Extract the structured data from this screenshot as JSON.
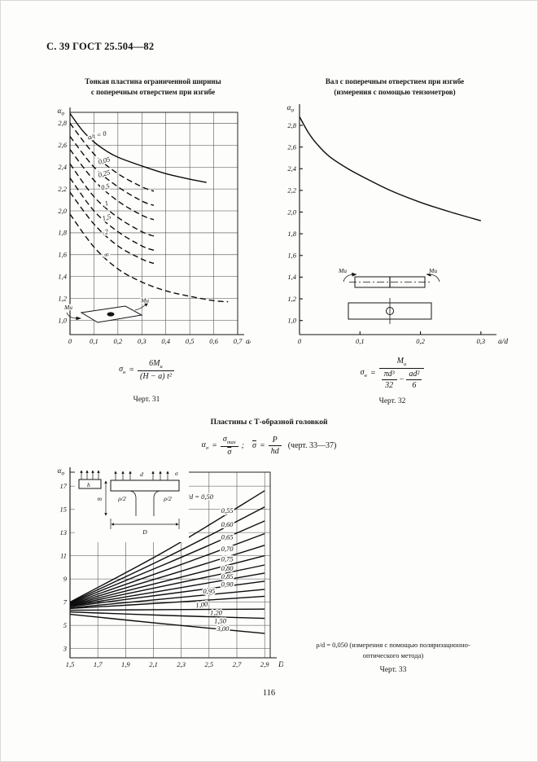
{
  "page": {
    "header": "С. 39 ГОСТ 25.504—82",
    "page_number": "116"
  },
  "colors": {
    "ink": "#151515",
    "paper": "#fdfdfc"
  },
  "section": {
    "title": "Пластины с Т-образной головкой"
  },
  "figures": {
    "fig31": {
      "title_lines": [
        "Тонкая пластина ограниченной ширины",
        "с поперечным отверстием при изгибе"
      ],
      "caption": "Черт. 31"
    },
    "fig32": {
      "title_lines": [
        "Вал с поперечным отверстием при изгибе",
        "(измерения с помощью тензометров)"
      ],
      "caption": "Черт. 32"
    },
    "fig33": {
      "note_lines": [
        "ρ/d = 0,050 (измерения с помощью поляризационно-",
        "оптического метода)"
      ],
      "caption": "Черт. 33"
    }
  },
  "formulas": {
    "f31": {
      "lhs": "σ",
      "lhs_sub": "н",
      "eq": "=",
      "num": "6M",
      "num_sub": "и",
      "den": "(H − a) t²"
    },
    "f32": {
      "lhs": "σ",
      "lhs_sub": "н",
      "eq": "=",
      "num": "M",
      "num_sub": "и",
      "d1n": "πd³",
      "d1d": "32",
      "minus": "−",
      "d2n": "ad²",
      "d2d": "6"
    },
    "f33": {
      "lhs": "α",
      "lhs_sub": "σ",
      "eq": "=",
      "n1": "σ",
      "n1_sub": "max",
      "d1": "σ",
      "semi": ";",
      "lhs2": "σ",
      "eq2": "=",
      "n2": "P",
      "d2": "hd",
      "tail": "(черт. 33—37)"
    }
  },
  "insets": {
    "fig31": {
      "m_left": "Mи",
      "m_right": "Mи"
    },
    "fig32": {
      "m_left": "Mи",
      "m_right": "Mи"
    },
    "fig33": {
      "h": "h",
      "d": "d",
      "sigma": "σ",
      "rho_left": "ρ/2",
      "rho_right": "ρ/2",
      "m": "m",
      "D": "D"
    }
  },
  "chart_data": [
    {
      "id": "fig31",
      "type": "line",
      "title": "Тонкая пластина ограниченной ширины с поперечным отверстием при изгибе",
      "xlabel": "a/H",
      "ylabel_base": "α",
      "ylabel_sub": "σ",
      "xlim": [
        0,
        0.7
      ],
      "ylim": [
        0.87,
        2.9
      ],
      "grid": true,
      "legend_position": "none",
      "x_ticks": {
        "values": [
          0,
          0.1,
          0.2,
          0.3,
          0.4,
          0.5,
          0.6,
          0.7
        ],
        "labels": [
          "0",
          "0,1",
          "0,2",
          "0,3",
          "0,4",
          "0,5",
          "0,6",
          "0,7"
        ]
      },
      "y_ticks": {
        "values": [
          1.0,
          1.2,
          1.4,
          1.6,
          1.8,
          2.0,
          2.2,
          2.4,
          2.6,
          2.8
        ],
        "labels": [
          "1,0",
          "1,2",
          "1,4",
          "1,6",
          "1,8",
          "2,0",
          "2,2",
          "2,4",
          "2,6",
          "2,8"
        ]
      },
      "series": [
        {
          "name": "a/t = 0",
          "style": "solid",
          "points": [
            [
              0,
              2.89
            ],
            [
              0.05,
              2.74
            ],
            [
              0.1,
              2.63
            ],
            [
              0.15,
              2.55
            ],
            [
              0.2,
              2.49
            ],
            [
              0.3,
              2.41
            ],
            [
              0.4,
              2.34
            ],
            [
              0.5,
              2.29
            ],
            [
              0.57,
              2.26
            ]
          ],
          "label": {
            "text": "a/t = 0",
            "x": 0.115,
            "y": 2.67,
            "rot": -13
          }
        },
        {
          "name": "0,05",
          "style": "dashed",
          "points": [
            [
              0,
              2.8
            ],
            [
              0.1,
              2.52
            ],
            [
              0.2,
              2.34
            ],
            [
              0.3,
              2.22
            ],
            [
              0.35,
              2.18
            ]
          ],
          "label": {
            "text": "0,05",
            "x": 0.145,
            "y": 2.44,
            "rot": -15
          }
        },
        {
          "name": "0,25",
          "style": "dashed",
          "points": [
            [
              0,
              2.68
            ],
            [
              0.1,
              2.4
            ],
            [
              0.2,
              2.22
            ],
            [
              0.3,
              2.09
            ],
            [
              0.35,
              2.05
            ]
          ],
          "label": {
            "text": "0,25",
            "x": 0.145,
            "y": 2.32,
            "rot": -15
          }
        },
        {
          "name": "0,5",
          "style": "dashed",
          "points": [
            [
              0,
              2.56
            ],
            [
              0.1,
              2.28
            ],
            [
              0.2,
              2.09
            ],
            [
              0.3,
              1.96
            ],
            [
              0.35,
              1.92
            ]
          ],
          "label": {
            "text": "0,5",
            "x": 0.15,
            "y": 2.2,
            "rot": -15
          }
        },
        {
          "name": "1",
          "style": "dashed",
          "points": [
            [
              0,
              2.43
            ],
            [
              0.1,
              2.13
            ],
            [
              0.2,
              1.94
            ],
            [
              0.3,
              1.81
            ],
            [
              0.35,
              1.77
            ]
          ],
          "label": {
            "text": "1",
            "x": 0.155,
            "y": 2.05,
            "rot": -15
          }
        },
        {
          "name": "1,5",
          "style": "dashed",
          "points": [
            [
              0,
              2.3
            ],
            [
              0.1,
              2.0
            ],
            [
              0.2,
              1.81
            ],
            [
              0.3,
              1.68
            ],
            [
              0.35,
              1.64
            ]
          ],
          "label": {
            "text": "1,5",
            "x": 0.155,
            "y": 1.92,
            "rot": -15
          }
        },
        {
          "name": "2",
          "style": "dashed",
          "points": [
            [
              0,
              2.17
            ],
            [
              0.1,
              1.88
            ],
            [
              0.2,
              1.68
            ],
            [
              0.3,
              1.56
            ],
            [
              0.35,
              1.52
            ]
          ],
          "label": {
            "text": "2",
            "x": 0.155,
            "y": 1.79,
            "rot": -15
          }
        },
        {
          "name": "∞",
          "style": "dashed",
          "points": [
            [
              0,
              1.97
            ],
            [
              0.1,
              1.67
            ],
            [
              0.2,
              1.47
            ],
            [
              0.3,
              1.35
            ],
            [
              0.4,
              1.27
            ],
            [
              0.5,
              1.22
            ],
            [
              0.6,
              1.18
            ],
            [
              0.66,
              1.17
            ]
          ],
          "label": {
            "text": "∞",
            "x": 0.155,
            "y": 1.58,
            "rot": -15
          }
        }
      ]
    },
    {
      "id": "fig32",
      "type": "line",
      "title": "Вал с поперечным отверстием при изгибе (измерения с помощью тензометров)",
      "xlabel": "a/d",
      "ylabel_base": "α",
      "ylabel_sub": "σ",
      "xlim": [
        0,
        0.315
      ],
      "ylim": [
        0.87,
        2.95
      ],
      "grid": false,
      "legend_position": "none",
      "x_ticks": {
        "values": [
          0,
          0.1,
          0.2,
          0.3
        ],
        "labels": [
          "0",
          "0,1",
          "0,2",
          "0,3"
        ]
      },
      "y_ticks": {
        "values": [
          1.0,
          1.2,
          1.4,
          1.6,
          1.8,
          2.0,
          2.2,
          2.4,
          2.6,
          2.8
        ],
        "labels": [
          "1,0",
          "1,2",
          "1,4",
          "1,6",
          "1,8",
          "2,0",
          "2,2",
          "2,4",
          "2,6",
          "2,8"
        ]
      },
      "series": [
        {
          "name": "вал с отверстием",
          "style": "solid",
          "points": [
            [
              0,
              2.88
            ],
            [
              0.015,
              2.73
            ],
            [
              0.03,
              2.62
            ],
            [
              0.05,
              2.51
            ],
            [
              0.08,
              2.4
            ],
            [
              0.11,
              2.31
            ],
            [
              0.15,
              2.2
            ],
            [
              0.2,
              2.09
            ],
            [
              0.25,
              2.0
            ],
            [
              0.3,
              1.92
            ]
          ]
        }
      ]
    },
    {
      "id": "fig33",
      "type": "line",
      "title": "Пластины с Т-образной головкой",
      "xlabel": "D/d",
      "ylabel_base": "α",
      "ylabel_sub": "σ",
      "xlim": [
        1.5,
        2.94
      ],
      "ylim": [
        2.2,
        18.2
      ],
      "grid": true,
      "legend_position": "none",
      "x_ticks": {
        "values": [
          1.5,
          1.7,
          1.9,
          2.1,
          2.3,
          2.5,
          2.7,
          2.9
        ],
        "labels": [
          "1,5",
          "1,7",
          "1,9",
          "2,1",
          "2,3",
          "2,5",
          "2,7",
          "2,9"
        ]
      },
      "y_ticks": {
        "values": [
          3,
          5,
          7,
          9,
          11,
          13,
          15,
          17
        ],
        "labels": [
          "3",
          "5",
          "7",
          "9",
          "11",
          "13",
          "15",
          "17"
        ]
      },
      "series": [
        {
          "name": "m/d = 0,50",
          "style": "solid",
          "points": [
            [
              1.5,
              7.0
            ],
            [
              2.2,
              11.5
            ],
            [
              2.9,
              16.6
            ]
          ],
          "label": {
            "text": "m/d = 0,50",
            "x": 2.42,
            "y": 15.9
          }
        },
        {
          "name": "0,55",
          "style": "solid",
          "points": [
            [
              1.5,
              6.95
            ],
            [
              2.2,
              10.9
            ],
            [
              2.9,
              15.2
            ]
          ],
          "label": {
            "text": "0,55",
            "x": 2.63,
            "y": 14.7
          }
        },
        {
          "name": "0,60",
          "style": "solid",
          "points": [
            [
              1.5,
              6.9
            ],
            [
              2.2,
              10.35
            ],
            [
              2.9,
              14.0
            ]
          ],
          "label": {
            "text": "0,60",
            "x": 2.63,
            "y": 13.5
          }
        },
        {
          "name": "0,65",
          "style": "solid",
          "points": [
            [
              1.5,
              6.85
            ],
            [
              2.2,
              9.8
            ],
            [
              2.9,
              12.9
            ]
          ],
          "label": {
            "text": "0,65",
            "x": 2.63,
            "y": 12.4
          }
        },
        {
          "name": "0,70",
          "style": "solid",
          "points": [
            [
              1.5,
              6.8
            ],
            [
              2.2,
              9.3
            ],
            [
              2.9,
              11.9
            ]
          ],
          "label": {
            "text": "0,70",
            "x": 2.63,
            "y": 11.4
          }
        },
        {
          "name": "0,75",
          "style": "solid",
          "points": [
            [
              1.5,
              6.75
            ],
            [
              2.2,
              8.85
            ],
            [
              2.9,
              11.0
            ]
          ],
          "label": {
            "text": "0,75",
            "x": 2.63,
            "y": 10.5
          }
        },
        {
          "name": "0,80",
          "style": "solid",
          "points": [
            [
              1.5,
              6.7
            ],
            [
              2.2,
              8.45
            ],
            [
              2.9,
              10.2
            ]
          ],
          "label": {
            "text": "0,80",
            "x": 2.63,
            "y": 9.7
          }
        },
        {
          "name": "0,85",
          "style": "solid",
          "points": [
            [
              1.5,
              6.65
            ],
            [
              2.2,
              8.05
            ],
            [
              2.9,
              9.5
            ]
          ],
          "label": {
            "text": "0,85",
            "x": 2.63,
            "y": 9.0
          }
        },
        {
          "name": "0,90",
          "style": "solid",
          "points": [
            [
              1.5,
              6.6
            ],
            [
              2.2,
              7.7
            ],
            [
              2.9,
              8.8
            ]
          ],
          "label": {
            "text": "0,90",
            "x": 2.63,
            "y": 8.35
          }
        },
        {
          "name": "0,95",
          "style": "solid",
          "points": [
            [
              1.5,
              6.5
            ],
            [
              2.2,
              7.3
            ],
            [
              2.9,
              8.1
            ]
          ],
          "label": {
            "text": "0,95",
            "x": 2.5,
            "y": 7.75
          }
        },
        {
          "name": "1,00",
          "style": "solid",
          "points": [
            [
              1.5,
              6.45
            ],
            [
              2.2,
              6.95
            ],
            [
              2.9,
              7.5
            ]
          ],
          "label": {
            "text": "1,00",
            "x": 2.45,
            "y": 6.6,
            "rot": -8
          }
        },
        {
          "name": "1,20",
          "style": "solid",
          "points": [
            [
              1.5,
              6.3
            ],
            [
              2.2,
              6.35
            ],
            [
              2.9,
              6.4
            ]
          ],
          "label": {
            "text": "1,20",
            "x": 2.55,
            "y": 5.9
          }
        },
        {
          "name": "1,50",
          "style": "solid",
          "points": [
            [
              1.5,
              6.15
            ],
            [
              2.2,
              5.85
            ],
            [
              2.9,
              5.6
            ]
          ],
          "label": {
            "text": "1,50",
            "x": 2.58,
            "y": 5.2
          }
        },
        {
          "name": "3,00",
          "style": "solid",
          "points": [
            [
              1.5,
              5.95
            ],
            [
              2.2,
              5.1
            ],
            [
              2.9,
              4.3
            ]
          ],
          "label": {
            "text": "3,00",
            "x": 2.6,
            "y": 4.5
          }
        }
      ]
    }
  ]
}
